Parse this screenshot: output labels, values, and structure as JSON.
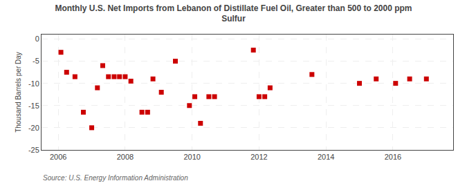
{
  "chart_data": {
    "type": "scatter",
    "title": "Monthly U.S. Net Imports from Lebanon of Distillate Fuel Oil, Greater than 500 to 2000 ppm\nSulfur",
    "ylabel": "Thousand Barrels per Day",
    "annotations": [
      "Source: U.S. Energy Information Administration"
    ],
    "color": "#cc0000",
    "marker": "square",
    "grid": true,
    "xlim": [
      2005.5,
      2017.8
    ],
    "xticks": [
      2006,
      2008,
      2010,
      2012,
      2014,
      2016
    ],
    "ylim": [
      -25,
      1
    ],
    "yticks": [
      0,
      -5,
      -10,
      -15,
      -20,
      -25
    ],
    "x": [
      2006.08,
      2006.25,
      2006.5,
      2006.75,
      2007.0,
      2007.17,
      2007.33,
      2007.5,
      2007.67,
      2007.83,
      2008.0,
      2008.17,
      2008.5,
      2008.67,
      2008.83,
      2009.08,
      2009.5,
      2009.92,
      2010.08,
      2010.25,
      2010.5,
      2010.67,
      2011.83,
      2012.0,
      2012.17,
      2012.33,
      2013.58,
      2015.0,
      2015.5,
      2016.08,
      2016.5,
      2017.0
    ],
    "values": [
      -3.0,
      -7.5,
      -8.5,
      -16.5,
      -20.0,
      -11.0,
      -6.0,
      -8.5,
      -8.5,
      -8.5,
      -8.5,
      -9.5,
      -16.5,
      -16.5,
      -9.0,
      -12.0,
      -5.0,
      -15.0,
      -13.0,
      -19.0,
      -13.0,
      -13.0,
      -2.5,
      -13.0,
      -13.0,
      -11.0,
      -8.0,
      -10.0,
      -9.0,
      -10.0,
      -9.0,
      -9.0
    ]
  }
}
